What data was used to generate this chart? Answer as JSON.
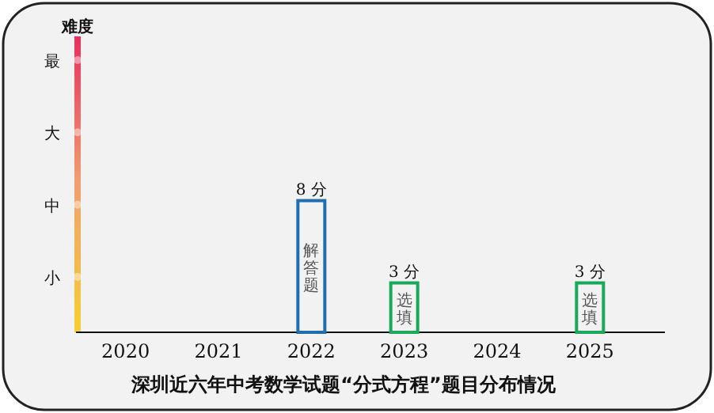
{
  "chart_data": {
    "type": "bar",
    "title": "深圳近六年中考数学试题“分式方程”题目分布情况",
    "categories": [
      "2020",
      "2021",
      "2022",
      "2023",
      "2024",
      "2025"
    ],
    "values": [
      null,
      null,
      8,
      3,
      null,
      3
    ],
    "colors": [
      null,
      null,
      "#1f6fb0",
      "#1aa85a",
      null,
      "#1aa85a"
    ],
    "value_labels": [
      null,
      null,
      "8 分",
      "3 分",
      null,
      "3 分"
    ],
    "annotations": [
      "难度",
      "最",
      "大",
      "中",
      "小",
      "解答题",
      "选填",
      "选填"
    ],
    "grid": false
  }
}
